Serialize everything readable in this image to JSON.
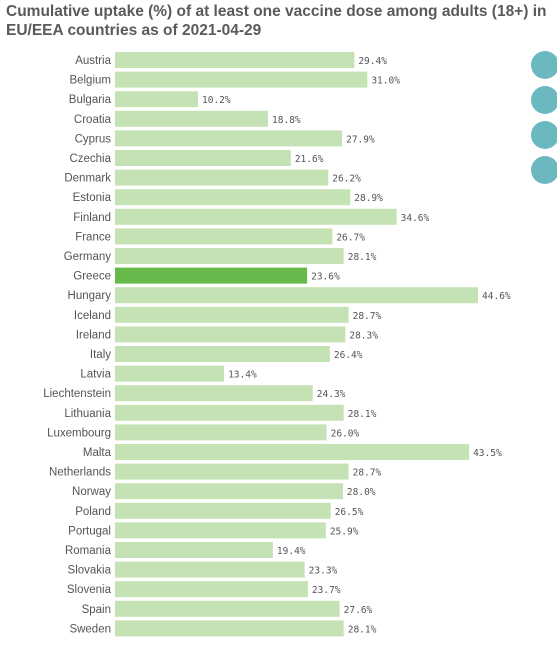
{
  "title": "Cumulative uptake (%) of at least one vaccine dose among adults (18+) in EU/EEA countries as of 2021-04-29",
  "colors": {
    "bar": "#c5e2b5",
    "highlight": "#66b94a",
    "side_buttons": "#6bb8c0"
  },
  "side_buttons": [
    "side-button-1",
    "side-button-2",
    "side-button-3",
    "side-button-4"
  ],
  "chart_data": {
    "type": "bar",
    "orientation": "horizontal",
    "title": "Cumulative uptake (%) of at least one vaccine dose among adults (18+) in EU/EEA countries as of 2021-04-29",
    "xlim": [
      0,
      50
    ],
    "grid": false,
    "legend": "none",
    "highlighted": "Greece",
    "categories": [
      "Austria",
      "Belgium",
      "Bulgaria",
      "Croatia",
      "Cyprus",
      "Czechia",
      "Denmark",
      "Estonia",
      "Finland",
      "France",
      "Germany",
      "Greece",
      "Hungary",
      "Iceland",
      "Ireland",
      "Italy",
      "Latvia",
      "Liechtenstein",
      "Lithuania",
      "Luxembourg",
      "Malta",
      "Netherlands",
      "Norway",
      "Poland",
      "Portugal",
      "Romania",
      "Slovakia",
      "Slovenia",
      "Spain",
      "Sweden"
    ],
    "values": [
      29.4,
      31.0,
      10.2,
      18.8,
      27.9,
      21.6,
      26.2,
      28.9,
      34.6,
      26.7,
      28.1,
      23.6,
      44.6,
      28.7,
      28.3,
      26.4,
      13.4,
      24.3,
      28.1,
      26.0,
      43.5,
      28.7,
      28.0,
      26.5,
      25.9,
      19.4,
      23.3,
      23.7,
      27.6,
      28.1
    ],
    "value_labels": [
      "29.4%",
      "31.0%",
      "10.2%",
      "18.8%",
      "27.9%",
      "21.6%",
      "26.2%",
      "28.9%",
      "34.6%",
      "26.7%",
      "28.1%",
      "23.6%",
      "44.6%",
      "28.7%",
      "28.3%",
      "26.4%",
      "13.4%",
      "24.3%",
      "28.1%",
      "26.0%",
      "43.5%",
      "28.7%",
      "28.0%",
      "26.5%",
      "25.9%",
      "19.4%",
      "23.3%",
      "23.7%",
      "27.6%",
      "28.1%"
    ]
  }
}
